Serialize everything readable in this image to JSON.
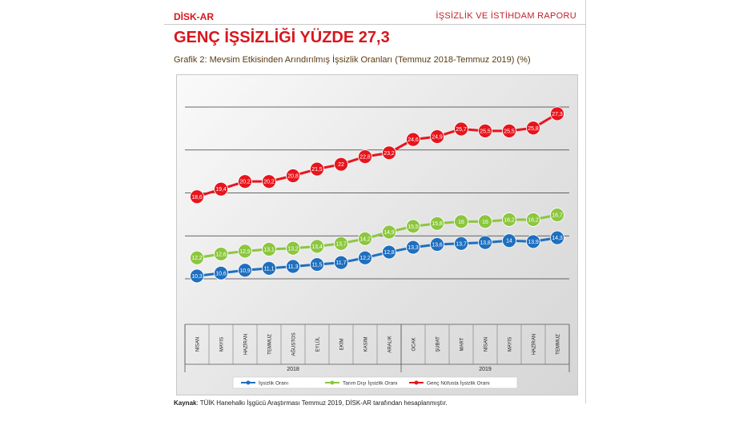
{
  "header": {
    "org": "DİSK-AR",
    "report": "İŞSİZLİK VE İSTİHDAM RAPORU"
  },
  "title": "GENÇ İŞSİZLİĞİ YÜZDE 27,3",
  "subtitle": "Grafik 2: Mevsim Etkisinden Arındırılmış İşsizlik Oranları (Temmuz 2018-Temmuz 2019) (%)",
  "source": {
    "label": "Kaynak",
    "text": ": TÜİK Hanehalkı İşgücü Araştırması Temmuz 2019, DİSK-AR tarafından hesaplanmıştır."
  },
  "chart_data": {
    "type": "line",
    "categories": [
      "NİSAN",
      "MAYIS",
      "HAZİRAN",
      "TEMMUZ",
      "AĞUSTOS",
      "EYLÜL",
      "EKİM",
      "KASIM",
      "ARALIK",
      "OCAK",
      "ŞUBAT",
      "MART",
      "NİSAN",
      "MAYIS",
      "HAZİRAN",
      "TEMMUZ"
    ],
    "groups": [
      {
        "label": "2018",
        "count": 9
      },
      {
        "label": "2019",
        "count": 7
      }
    ],
    "series": [
      {
        "name": "İşsizlik Oranı",
        "color": "#1f6fbf",
        "values": [
          10.3,
          10.6,
          10.9,
          11.1,
          11.3,
          11.5,
          11.7,
          12.2,
          12.8,
          13.3,
          13.6,
          13.7,
          13.8,
          14,
          13.9,
          14.3
        ],
        "labels": [
          "10,3",
          "10,6",
          "10,9",
          "11,1",
          "11,3",
          "11,5",
          "11,7",
          "12,2",
          "12,8",
          "13,3",
          "13,6",
          "13,7",
          "13,8",
          "14",
          "13,9",
          "14,3"
        ]
      },
      {
        "name": "Tarım Dışı İşsizlik Oranı",
        "color": "#8cc63f",
        "values": [
          12.2,
          12.6,
          12.9,
          13.1,
          13.2,
          13.4,
          13.7,
          14.2,
          14.9,
          15.5,
          15.8,
          16,
          16,
          16.2,
          16.2,
          16.7
        ],
        "labels": [
          "12,2",
          "12,6",
          "12,9",
          "13,1",
          "13,2",
          "13,4",
          "13,7",
          "14,2",
          "14,9",
          "15,5",
          "15,8",
          "16",
          "16",
          "16,2",
          "16,2",
          "16,7"
        ]
      },
      {
        "name": "Genç Nüfusta İşsizlik Oranı",
        "color": "#e8141c",
        "values": [
          18.6,
          19.4,
          20.2,
          20.2,
          20.8,
          21.5,
          22,
          22.8,
          23.2,
          24.6,
          24.9,
          25.7,
          25.5,
          25.5,
          25.8,
          27.3
        ],
        "labels": [
          "18,6",
          "19,4",
          "20,2",
          "20,2",
          "20,8",
          "21,5",
          "22",
          "22,8",
          "23,2",
          "24,6",
          "24,9",
          "25,7",
          "25,5",
          "25,5",
          "25,8",
          "27,3"
        ]
      }
    ],
    "ylim": [
      10,
      28
    ],
    "grid": true,
    "legend": "bottom"
  }
}
